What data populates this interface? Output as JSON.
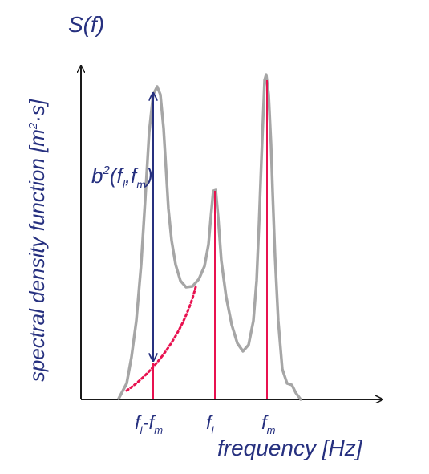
{
  "ylabel": {
    "main": "spectral density function [m",
    "sup": "2",
    "rest": "·s]"
  },
  "s_label": "S(f)",
  "xlabel": "frequency [Hz]",
  "bispectrum_label": {
    "b": "b",
    "exp": "2",
    "args_open": "(f",
    "sub_l": "l",
    "comma": ",f",
    "sub_m": "m",
    "close": ")"
  },
  "ticks": {
    "diff": {
      "f1": "f",
      "s1": "l",
      "minus": "-f",
      "s2": "m"
    },
    "fl": {
      "f": "f",
      "s": "l"
    },
    "fm": {
      "f": "f",
      "s": "m"
    }
  },
  "colors": {
    "curve": "#a6a6a6",
    "marker": "#e8114f",
    "text": "#26307f",
    "axis": "#1a1a1a"
  }
}
